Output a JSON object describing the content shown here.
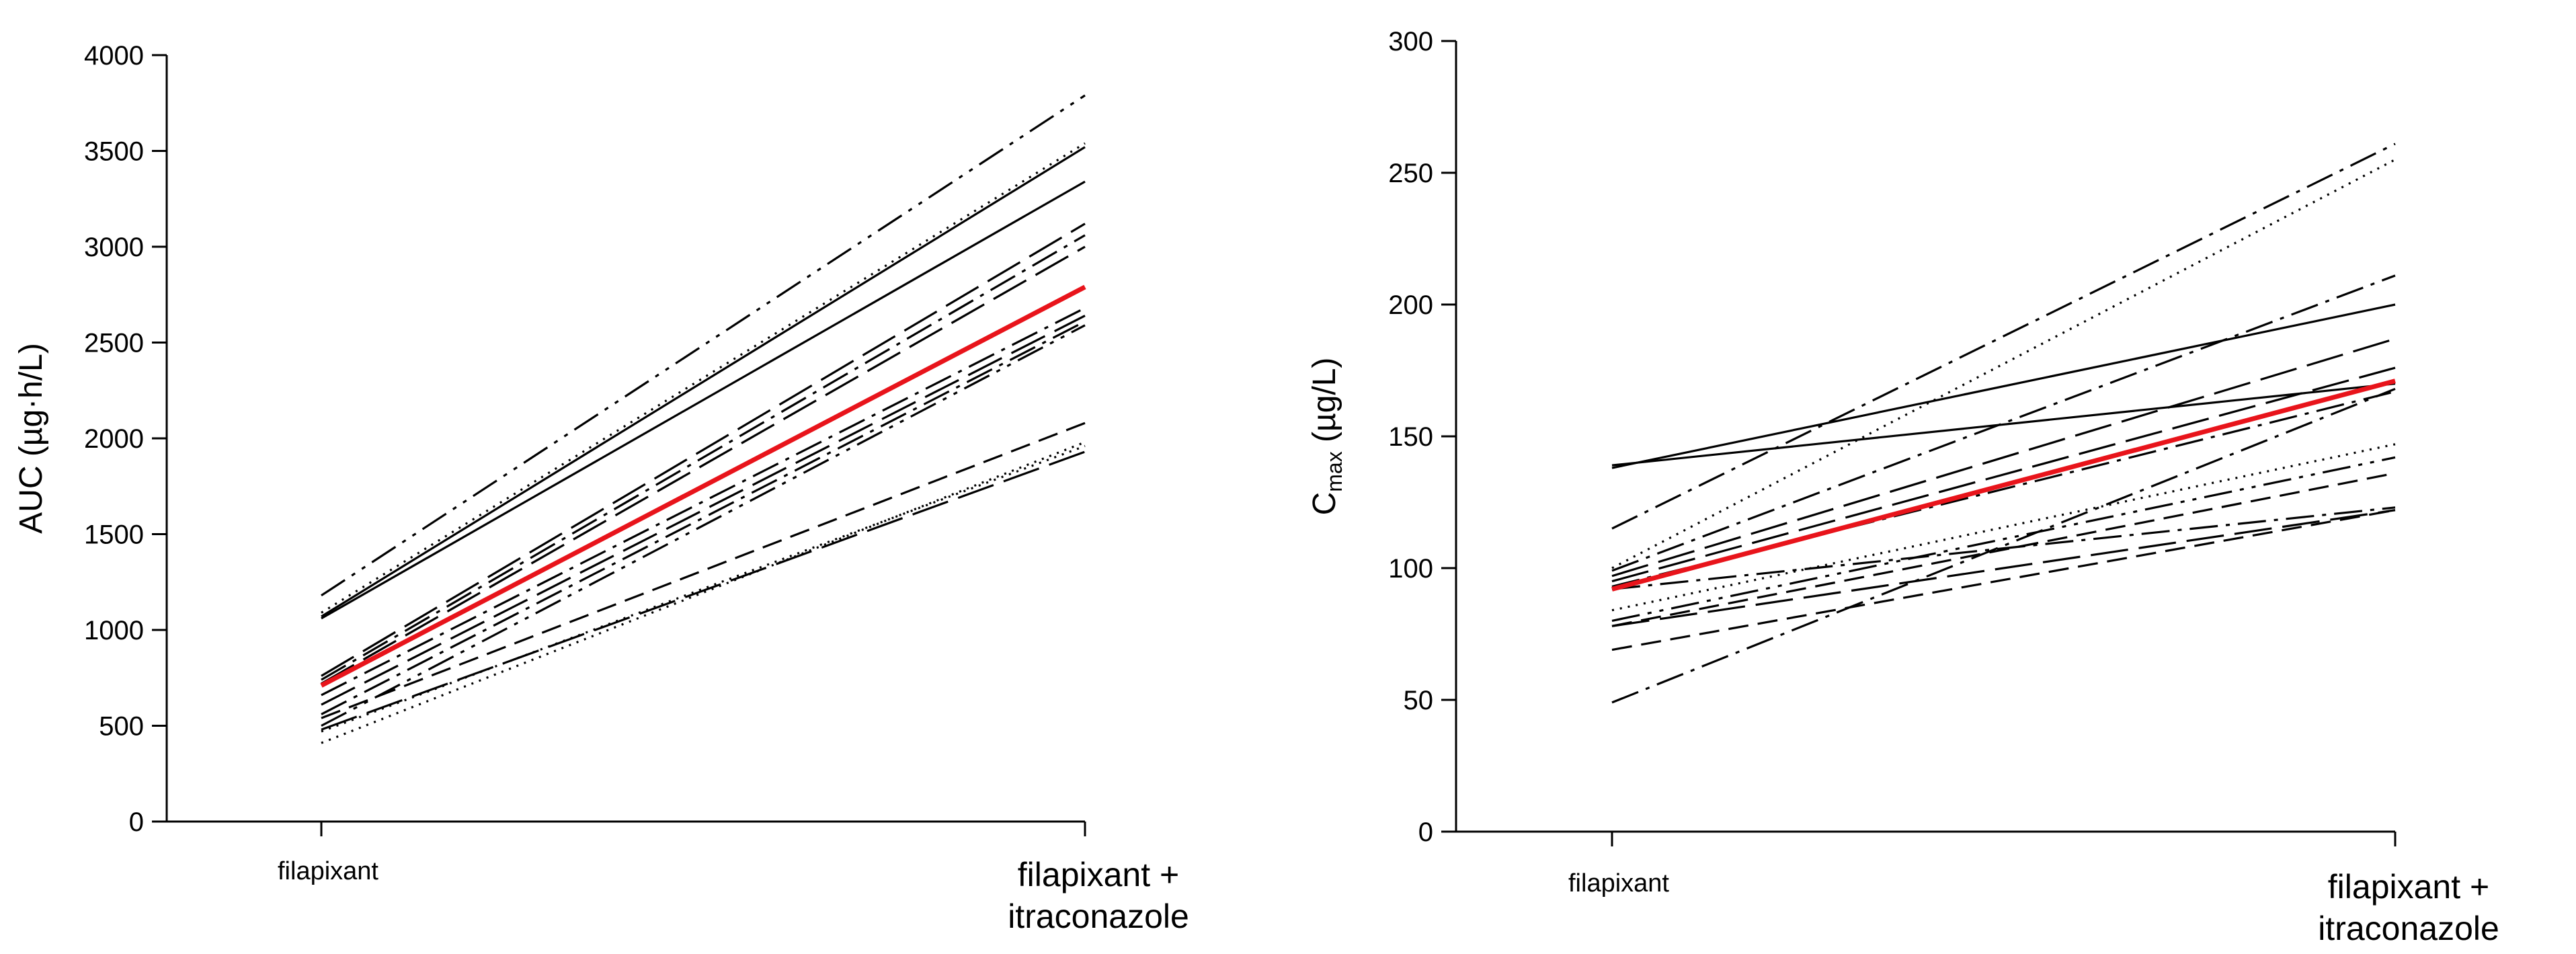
{
  "colors": {
    "subject": "#000000",
    "mean": "#e8141b"
  },
  "chart_data": [
    {
      "type": "line",
      "categories": [
        "filapixant",
        "filapixant +\nitraconazole"
      ],
      "ylabel": "AUC (µg·h/L)",
      "ylim": [
        0,
        4000
      ],
      "yticks": [
        0,
        500,
        1000,
        1500,
        2000,
        2500,
        3000,
        3500,
        4000
      ],
      "grid": false,
      "subjects": [
        {
          "values": [
            1180,
            3790
          ],
          "style": "dash-dot-dot"
        },
        {
          "values": [
            1090,
            3540
          ],
          "style": "dotted"
        },
        {
          "values": [
            1070,
            3520
          ],
          "style": "solid"
        },
        {
          "values": [
            1060,
            3340
          ],
          "style": "solid"
        },
        {
          "values": [
            760,
            3120
          ],
          "style": "long-dash"
        },
        {
          "values": [
            740,
            3060
          ],
          "style": "dash-dot"
        },
        {
          "values": [
            720,
            3000
          ],
          "style": "long-dash"
        },
        {
          "values": [
            660,
            2680
          ],
          "style": "dash-dot"
        },
        {
          "values": [
            610,
            2640
          ],
          "style": "long-dash"
        },
        {
          "values": [
            560,
            2610
          ],
          "style": "dash-dot"
        },
        {
          "values": [
            500,
            2590
          ],
          "style": "dash-dot-dot"
        },
        {
          "values": [
            540,
            2080
          ],
          "style": "dashed"
        },
        {
          "values": [
            470,
            1960
          ],
          "style": "dotted"
        },
        {
          "values": [
            480,
            1930
          ],
          "style": "long-dash"
        },
        {
          "values": [
            410,
            1980
          ],
          "style": "dotted"
        }
      ],
      "mean": {
        "values": [
          710,
          2790
        ]
      }
    },
    {
      "type": "line",
      "categories": [
        "filapixant",
        "filapixant +\nitraconazole"
      ],
      "ylabel": "Cmax (µg/L)",
      "ylabel_main": "C",
      "ylabel_sub": "max",
      "ylabel_unit": " (µg/L)",
      "ylim": [
        0,
        300
      ],
      "yticks": [
        0,
        50,
        100,
        150,
        200,
        250,
        300
      ],
      "grid": false,
      "subjects": [
        {
          "values": [
            139,
            170
          ],
          "style": "solid"
        },
        {
          "values": [
            138,
            200
          ],
          "style": "solid"
        },
        {
          "values": [
            115,
            261
          ],
          "style": "dash-dot"
        },
        {
          "values": [
            100,
            255
          ],
          "style": "dotted"
        },
        {
          "values": [
            99,
            211
          ],
          "style": "dash-dot"
        },
        {
          "values": [
            97,
            187
          ],
          "style": "long-dash"
        },
        {
          "values": [
            95,
            176
          ],
          "style": "long-dash"
        },
        {
          "values": [
            93,
            167
          ],
          "style": "dash-dot"
        },
        {
          "values": [
            92,
            123
          ],
          "style": "dash-dot"
        },
        {
          "values": [
            84,
            147
          ],
          "style": "dotted"
        },
        {
          "values": [
            80,
            142
          ],
          "style": "dash-dot-dot"
        },
        {
          "values": [
            78,
            136
          ],
          "style": "dashed"
        },
        {
          "values": [
            78,
            122
          ],
          "style": "long-dash"
        },
        {
          "values": [
            69,
            122
          ],
          "style": "dashed"
        },
        {
          "values": [
            49,
            168
          ],
          "style": "dash-dot"
        }
      ],
      "mean": {
        "values": [
          92,
          171
        ]
      }
    }
  ]
}
